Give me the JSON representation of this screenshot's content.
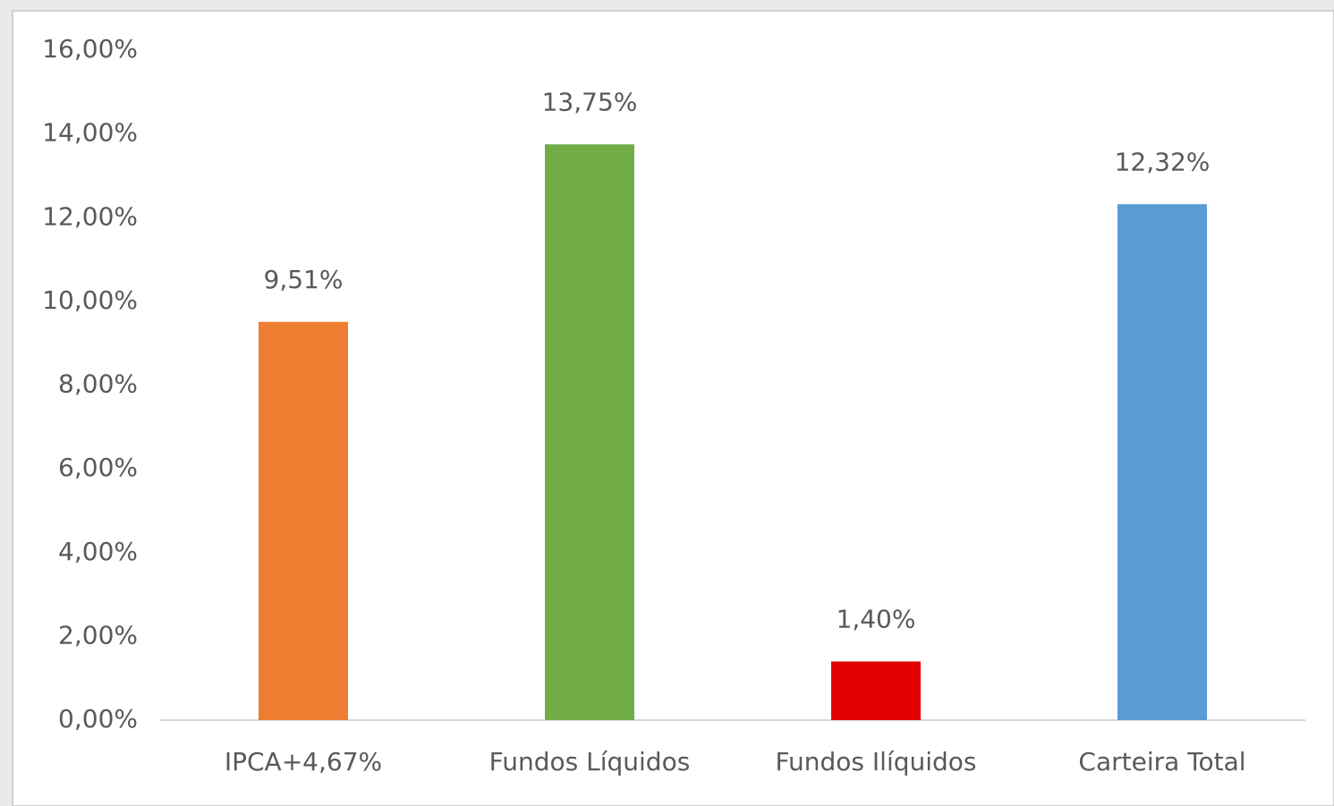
{
  "chart_data": {
    "type": "bar",
    "categories": [
      "IPCA+4,67%",
      "Fundos Líquidos",
      "Fundos Ilíquidos",
      "Carteira Total"
    ],
    "values": [
      9.51,
      13.75,
      1.4,
      12.32
    ],
    "value_labels": [
      "9,51%",
      "13,75%",
      "1,40%",
      "12,32%"
    ],
    "colors": [
      "#ed7d31",
      "#70ad47",
      "#e00000",
      "#5b9bd5"
    ],
    "ylim": [
      0,
      16
    ],
    "yticks": [
      {
        "value": 0,
        "label": "0,00%"
      },
      {
        "value": 2,
        "label": "2,00%"
      },
      {
        "value": 4,
        "label": "4,00%"
      },
      {
        "value": 6,
        "label": "6,00%"
      },
      {
        "value": 8,
        "label": "8,00%"
      },
      {
        "value": 10,
        "label": "10,00%"
      },
      {
        "value": 12,
        "label": "12,00%"
      },
      {
        "value": 14,
        "label": "14,00%"
      },
      {
        "value": 16,
        "label": "16,00%"
      }
    ],
    "grid": false
  }
}
